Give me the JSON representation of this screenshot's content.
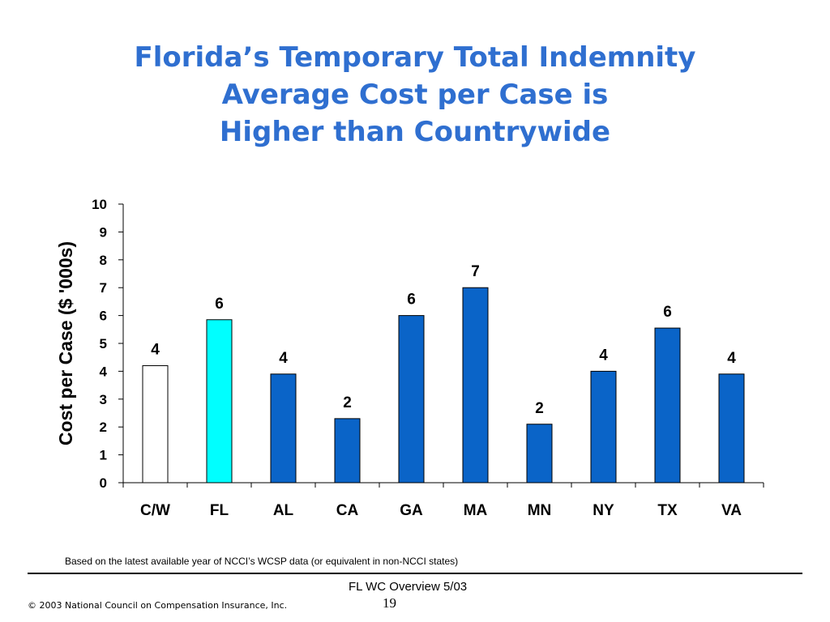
{
  "title_lines": [
    "Florida’s Temporary Total Indemnity",
    "Average Cost per Case is",
    "Higher than Countrywide"
  ],
  "chart_data": {
    "type": "bar",
    "categories": [
      "C/W",
      "FL",
      "AL",
      "CA",
      "GA",
      "MA",
      "MN",
      "NY",
      "TX",
      "VA"
    ],
    "values": [
      4.2,
      5.85,
      3.9,
      2.3,
      6.0,
      7.0,
      2.1,
      4.0,
      5.55,
      3.9
    ],
    "data_labels": [
      "4",
      "6",
      "4",
      "2",
      "6",
      "7",
      "2",
      "4",
      "6",
      "4"
    ],
    "ylabel": "Cost per Case ($ '000s)",
    "xlabel": "",
    "ylim": [
      0,
      10
    ],
    "yticks": [
      "0",
      "1",
      "2",
      "3",
      "4",
      "5",
      "6",
      "7",
      "8",
      "9",
      "10"
    ],
    "bar_colors": [
      "#ffffff",
      "#00ffff",
      "#0a64c8",
      "#0a64c8",
      "#0a64c8",
      "#0a64c8",
      "#0a64c8",
      "#0a64c8",
      "#0a64c8",
      "#0a64c8"
    ],
    "grid": false,
    "legend": "none"
  },
  "footnote": "Based on the latest available year of NCCI’s WCSP data  (or equivalent in non-NCCI states)",
  "footer": {
    "overview": "FL WC Overview 5/03",
    "page_number": "19",
    "copyright": "© 2003 National Council on Compensation Insurance, Inc."
  }
}
